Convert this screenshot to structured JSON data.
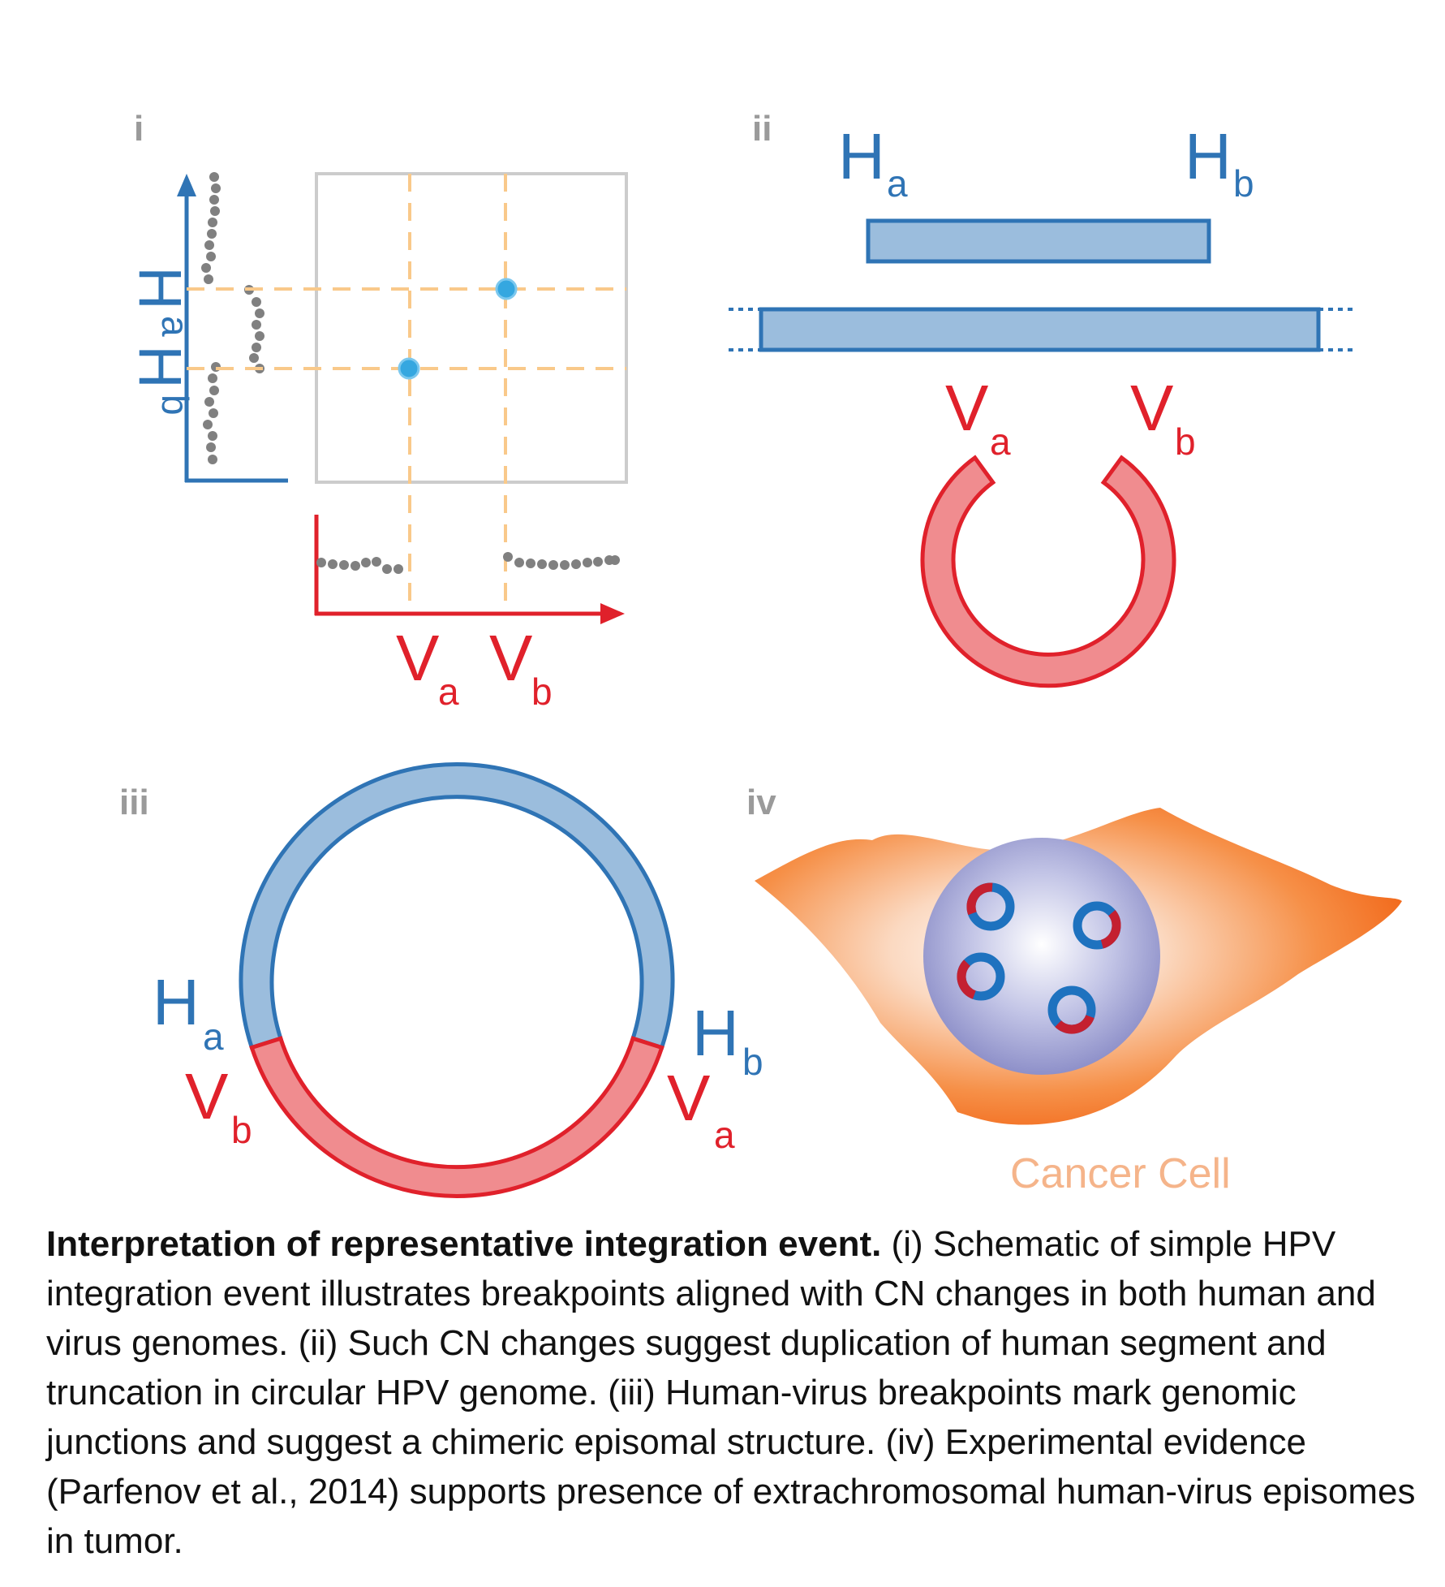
{
  "panels": {
    "i": {
      "tag": "i",
      "h_a": "H",
      "h_a_sub": "a",
      "h_b": "H",
      "h_b_sub": "b",
      "v_a": "V",
      "v_a_sub": "a",
      "v_b": "V",
      "v_b_sub": "b"
    },
    "ii": {
      "tag": "ii",
      "h_a": "H",
      "h_a_sub": "a",
      "h_b": "H",
      "h_b_sub": "b",
      "v_a": "V",
      "v_a_sub": "a",
      "v_b": "V",
      "v_b_sub": "b"
    },
    "iii": {
      "tag": "iii",
      "h_a": "H",
      "h_a_sub": "a",
      "h_b": "H",
      "h_b_sub": "b",
      "v_a": "V",
      "v_a_sub": "a",
      "v_b": "V",
      "v_b_sub": "b"
    },
    "iv": {
      "tag": "iv",
      "cell_label": "Cancer Cell"
    }
  },
  "caption": {
    "title": "Interpretation of representative integration event.",
    "body": " (i) Schematic of simple HPV integration event illustrates breakpoints aligned with CN changes in both human and virus genomes. (ii) Such CN changes suggest duplication of human segment and truncation in circular HPV genome.  (iii) Human-virus breakpoints mark genomic junctions and suggest a chimeric episomal structure.  (iv) Experimental evidence (Parfenov et al., 2014) supports presence of extrachromosomal human-virus episomes in tumor."
  },
  "colors": {
    "human_blue": "#2f74b5",
    "human_fill": "#9bbddd",
    "virus_red": "#e0212b",
    "virus_fill": "#f08c8f",
    "label_gray": "#9a9a9a",
    "breakpoint_orange": "#f9c98a",
    "cell_orange": "#f27a2a",
    "cell_label": "#f5b48a"
  }
}
